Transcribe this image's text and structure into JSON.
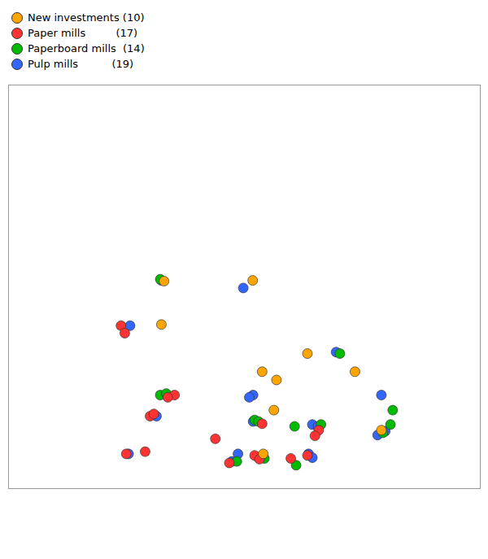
{
  "chart_data": {
    "type": "scatter",
    "series": [
      {
        "name": "New investments (10)",
        "color": "#FFA500",
        "x": [
          25.47,
          25.72,
          26.92,
          23.12,
          23.05,
          26.1,
          28.18,
          28.88,
          25.75,
          26.03
        ],
        "y": [
          65.02,
          62.6,
          63.08,
          65.0,
          63.85,
          62.38,
          62.6,
          61.05,
          60.42,
          61.58
        ]
      },
      {
        "name": "Paper mills         (17)",
        "color": "#FF3333",
        "x": [
          24.85,
          25.52,
          25.65,
          26.92,
          27.22,
          27.12,
          25.72,
          23.4,
          22.75,
          22.85,
          23.22,
          21.98,
          22.08,
          24.48,
          22.12,
          26.48,
          22.62
        ],
        "y": [
          60.18,
          60.38,
          60.28,
          60.38,
          61.05,
          60.9,
          61.22,
          61.98,
          61.42,
          61.48,
          61.92,
          63.82,
          63.62,
          60.82,
          60.42,
          60.3,
          60.48
        ]
      },
      {
        "name": "Paperboard mills  (14)",
        "color": "#00BB00",
        "x": [
          25.05,
          26.62,
          27.28,
          26.58,
          28.92,
          29.12,
          25.52,
          25.62,
          23.02,
          23.18,
          23.02,
          27.78,
          25.78,
          29.18
        ],
        "y": [
          60.22,
          60.12,
          61.2,
          61.15,
          60.98,
          61.2,
          61.32,
          61.28,
          61.98,
          62.02,
          65.05,
          63.08,
          60.3,
          61.58
        ]
      },
      {
        "name": "Pulp mills          (19)",
        "color": "#3366FF",
        "x": [
          24.92,
          25.08,
          26.95,
          27.05,
          27.05,
          27.2,
          28.78,
          28.98,
          25.48,
          22.92,
          23.05,
          22.22,
          25.48,
          25.38,
          28.88,
          27.68,
          25.62,
          22.18,
          25.22
        ],
        "y": [
          60.22,
          60.42,
          60.42,
          60.32,
          61.2,
          61.15,
          60.92,
          61.02,
          61.28,
          61.42,
          65.02,
          63.82,
          61.98,
          61.92,
          61.98,
          63.12,
          60.32,
          60.42,
          64.82
        ]
      }
    ],
    "xlim": [
      19.0,
      31.5
    ],
    "ylim": [
      59.5,
      70.2
    ],
    "tick_labels": false,
    "legend": "top",
    "marker": "circle"
  }
}
